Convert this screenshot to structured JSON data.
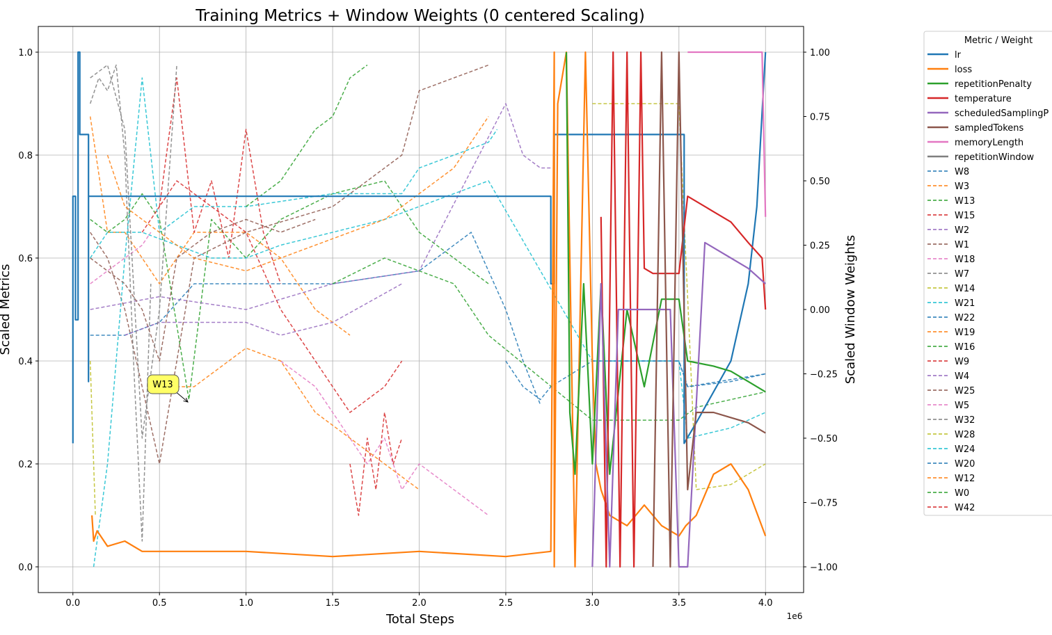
{
  "chart_data": {
    "type": "line",
    "title": "Training Metrics + Window Weights (0 centered Scaling)",
    "xlabel": "Total Steps",
    "ylabel": "Scaled Metrics",
    "y2label": "Scaled Window Weights",
    "x_offset_label": "1e6",
    "xlim": [
      -0.2,
      4.22
    ],
    "ylim": [
      -0.05,
      1.05
    ],
    "y2lim": [
      -1.1,
      1.1
    ],
    "grid": true,
    "x_ticks": [
      0.0,
      0.5,
      1.0,
      1.5,
      2.0,
      2.5,
      3.0,
      3.5,
      4.0
    ],
    "x_tick_labels": [
      "0.0",
      "0.5",
      "1.0",
      "1.5",
      "2.0",
      "2.5",
      "3.0",
      "3.5",
      "4.0"
    ],
    "y_ticks": [
      0.0,
      0.2,
      0.4,
      0.6,
      0.8,
      1.0
    ],
    "y_tick_labels": [
      "0.0",
      "0.2",
      "0.4",
      "0.6",
      "0.8",
      "1.0"
    ],
    "y2_ticks": [
      1.0,
      0.75,
      0.5,
      0.25,
      0.0,
      -0.25,
      -0.5,
      -0.75,
      -1.0
    ],
    "y2_tick_labels": [
      "1.00",
      "0.75",
      "0.50",
      "0.25",
      "0.00",
      "−0.25",
      "−0.50",
      "−0.75",
      "−1.00"
    ],
    "legend_title": "Metric / Weight",
    "legend_position": "outside right",
    "annotation": {
      "text": "W13",
      "x": 0.67,
      "y": 0.32
    },
    "series": [
      {
        "name": "lr",
        "color": "#1f77b4",
        "style": "solid",
        "axis": "left",
        "x": [
          0.0,
          0.0,
          0.015,
          0.015,
          0.03,
          0.03,
          0.04,
          0.04,
          0.09,
          0.09,
          0.09,
          0.1,
          0.5,
          1.0,
          1.5,
          2.0,
          2.5,
          2.76,
          2.76,
          2.78,
          2.78,
          3.0,
          3.5,
          3.53,
          3.53,
          3.6,
          3.8,
          3.9,
          3.95,
          4.0
        ],
        "y": [
          0.24,
          0.72,
          0.72,
          0.48,
          0.48,
          1.0,
          1.0,
          0.84,
          0.84,
          0.36,
          0.72,
          0.72,
          0.72,
          0.72,
          0.72,
          0.72,
          0.72,
          0.72,
          0.55,
          0.55,
          0.84,
          0.84,
          0.84,
          0.84,
          0.24,
          0.28,
          0.4,
          0.55,
          0.7,
          1.0
        ]
      },
      {
        "name": "loss",
        "color": "#ff7f0e",
        "style": "solid",
        "axis": "left",
        "x": [
          0.11,
          0.12,
          0.14,
          0.2,
          0.3,
          0.4,
          0.5,
          0.7,
          1.0,
          1.5,
          2.0,
          2.5,
          2.76,
          2.78,
          2.78,
          2.8,
          2.85,
          2.9,
          2.96,
          3.0,
          3.02,
          3.05,
          3.1,
          3.2,
          3.3,
          3.4,
          3.5,
          3.54,
          3.6,
          3.7,
          3.8,
          3.9,
          4.0
        ],
        "y": [
          0.1,
          0.05,
          0.07,
          0.04,
          0.05,
          0.03,
          0.03,
          0.03,
          0.03,
          0.02,
          0.03,
          0.02,
          0.03,
          1.0,
          0.0,
          0.9,
          1.0,
          0.0,
          1.0,
          0.4,
          0.2,
          0.15,
          0.1,
          0.08,
          0.12,
          0.08,
          0.06,
          0.08,
          0.1,
          0.18,
          0.2,
          0.15,
          0.06
        ]
      },
      {
        "name": "repetitionPenalty",
        "color": "#2ca02c",
        "style": "solid",
        "axis": "left",
        "x": [
          2.85,
          2.87,
          2.9,
          2.95,
          3.0,
          3.05,
          3.1,
          3.2,
          3.3,
          3.4,
          3.45,
          3.5,
          3.55,
          3.7,
          3.8,
          3.9,
          4.0
        ],
        "y": [
          1.0,
          0.3,
          0.18,
          0.55,
          0.2,
          0.55,
          0.18,
          0.5,
          0.35,
          0.52,
          0.52,
          0.52,
          0.4,
          0.39,
          0.38,
          0.36,
          0.34
        ]
      },
      {
        "name": "temperature",
        "color": "#d62728",
        "style": "solid",
        "axis": "left",
        "x": [
          3.05,
          3.08,
          3.12,
          3.16,
          3.2,
          3.24,
          3.28,
          3.3,
          3.35,
          3.4,
          3.5,
          3.55,
          3.7,
          3.8,
          3.9,
          3.98,
          4.0
        ],
        "y": [
          0.68,
          0.0,
          1.0,
          0.0,
          1.0,
          0.0,
          1.0,
          0.58,
          0.57,
          0.57,
          0.57,
          0.72,
          0.69,
          0.67,
          0.63,
          0.6,
          0.5
        ]
      },
      {
        "name": "scheduledSamplingP",
        "color": "#9467bd",
        "style": "solid",
        "axis": "left",
        "x": [
          3.0,
          3.05,
          3.1,
          3.15,
          3.2,
          3.3,
          3.4,
          3.45,
          3.5,
          3.55,
          3.65,
          3.8,
          3.9,
          4.0
        ],
        "y": [
          0.0,
          0.55,
          0.0,
          0.5,
          0.5,
          0.5,
          0.5,
          0.5,
          0.0,
          0.0,
          0.63,
          0.6,
          0.58,
          0.55
        ]
      },
      {
        "name": "sampledTokens",
        "color": "#8c564b",
        "style": "solid",
        "axis": "left",
        "x": [
          3.35,
          3.4,
          3.45,
          3.5,
          3.55,
          3.6,
          3.7,
          3.8,
          3.9,
          4.0
        ],
        "y": [
          0.0,
          1.0,
          0.0,
          1.0,
          0.15,
          0.3,
          0.3,
          0.29,
          0.28,
          0.26
        ]
      },
      {
        "name": "memoryLength",
        "color": "#e377c2",
        "style": "solid",
        "axis": "left",
        "x": [
          3.55,
          3.7,
          3.8,
          3.9,
          3.98,
          4.0
        ],
        "y": [
          1.0,
          1.0,
          1.0,
          1.0,
          1.0,
          0.68
        ]
      },
      {
        "name": "repetitionWindow",
        "color": "#7f7f7f",
        "style": "solid",
        "axis": "left",
        "x": [],
        "y": []
      },
      {
        "name": "W8",
        "color": "#1f77b4",
        "style": "dashed",
        "axis": "right",
        "x": [
          0.1,
          0.3,
          0.5,
          0.7,
          1.0,
          1.5,
          2.0,
          2.3,
          2.5,
          2.6,
          2.7
        ],
        "y": [
          -0.1,
          -0.1,
          -0.05,
          0.1,
          0.1,
          0.1,
          0.15,
          0.3,
          0.0,
          -0.2,
          -0.37
        ]
      },
      {
        "name": "W3",
        "color": "#ff7f0e",
        "style": "dashed",
        "axis": "right",
        "x": [
          0.1,
          0.2,
          0.3,
          0.4,
          0.5,
          0.7,
          0.9,
          1.0,
          1.2,
          1.4,
          1.6
        ],
        "y": [
          0.75,
          0.3,
          0.3,
          0.2,
          0.1,
          0.3,
          0.3,
          0.3,
          0.2,
          0.0,
          -0.1
        ]
      },
      {
        "name": "W13",
        "color": "#2ca02c",
        "style": "dashed",
        "axis": "right",
        "x": [
          0.1,
          0.2,
          0.3,
          0.4,
          0.5,
          0.67,
          0.8,
          1.0,
          1.2,
          1.5,
          1.8,
          2.0,
          2.2,
          2.4
        ],
        "y": [
          0.35,
          0.3,
          0.35,
          0.45,
          0.35,
          -0.35,
          0.35,
          0.2,
          0.35,
          0.45,
          0.5,
          0.3,
          0.2,
          0.1
        ]
      },
      {
        "name": "W15",
        "color": "#d62728",
        "style": "dashed",
        "axis": "right",
        "x": [
          0.5,
          0.6,
          0.7,
          0.8,
          0.9,
          1.0,
          1.1,
          1.2
        ],
        "y": [
          0.4,
          0.9,
          0.3,
          0.5,
          0.2,
          0.7,
          0.3,
          0.1
        ]
      },
      {
        "name": "W2",
        "color": "#9467bd",
        "style": "dashed",
        "axis": "right",
        "x": [
          0.1,
          0.5,
          1.0,
          1.5,
          2.0,
          2.5,
          2.6,
          2.7,
          2.76
        ],
        "y": [
          0.0,
          0.05,
          0.0,
          0.1,
          0.15,
          0.8,
          0.6,
          0.55,
          0.55
        ]
      },
      {
        "name": "W1",
        "color": "#8c564b",
        "style": "dashed",
        "axis": "right",
        "x": [
          0.1,
          0.2,
          0.3,
          0.4,
          0.5,
          0.7,
          1.0,
          1.5,
          1.7,
          1.9,
          2.0,
          2.2,
          2.4
        ],
        "y": [
          0.3,
          0.2,
          0.0,
          -0.3,
          -0.6,
          0.2,
          0.3,
          0.4,
          0.5,
          0.6,
          0.85,
          0.9,
          0.95
        ]
      },
      {
        "name": "W18",
        "color": "#e377c2",
        "style": "dashed",
        "axis": "right",
        "x": [
          1.2,
          1.3,
          1.4,
          1.5,
          1.6,
          1.7,
          1.8,
          1.9,
          2.0,
          2.1,
          2.2,
          2.3,
          2.4
        ],
        "y": [
          -0.2,
          -0.25,
          -0.3,
          -0.4,
          -0.5,
          -0.6,
          -0.5,
          -0.7,
          -0.6,
          -0.65,
          -0.7,
          -0.75,
          -0.8
        ]
      },
      {
        "name": "W7",
        "color": "#7f7f7f",
        "style": "dashed",
        "axis": "right",
        "x": [
          0.1,
          0.15,
          0.2,
          0.25,
          0.3,
          0.35,
          0.4,
          0.45
        ],
        "y": [
          0.8,
          0.9,
          0.85,
          0.95,
          0.6,
          -0.2,
          -0.9,
          0.1
        ]
      },
      {
        "name": "W14",
        "color": "#bcbd22",
        "style": "dashed",
        "axis": "right",
        "x": [
          3.0,
          3.2,
          3.4,
          3.5,
          3.6,
          3.8,
          4.0
        ],
        "y": [
          0.8,
          0.8,
          0.8,
          0.8,
          -0.7,
          -0.68,
          -0.6
        ]
      },
      {
        "name": "W21",
        "color": "#17becf",
        "style": "dashed",
        "axis": "right",
        "x": [
          0.12,
          0.2,
          0.3,
          0.4,
          0.5,
          0.7,
          1.0,
          1.5,
          1.9,
          2.0,
          2.2,
          2.4,
          2.45
        ],
        "y": [
          -1.0,
          -0.6,
          0.2,
          0.9,
          0.3,
          0.4,
          0.4,
          0.45,
          0.45,
          0.55,
          0.6,
          0.65,
          0.7
        ]
      },
      {
        "name": "W22",
        "color": "#1f77b4",
        "style": "dashed",
        "axis": "right",
        "x": [
          3.0,
          3.5,
          3.55,
          3.8,
          4.0
        ],
        "y": [
          -0.2,
          -0.2,
          -0.3,
          -0.28,
          -0.25
        ]
      },
      {
        "name": "W19",
        "color": "#ff7f0e",
        "style": "dashed",
        "axis": "right",
        "x": [
          0.5,
          0.7,
          0.9,
          1.0,
          1.2,
          1.4,
          1.6,
          1.8,
          2.0
        ],
        "y": [
          -0.3,
          -0.3,
          -0.2,
          -0.15,
          -0.2,
          -0.4,
          -0.5,
          -0.6,
          -0.7
        ]
      },
      {
        "name": "W16",
        "color": "#2ca02c",
        "style": "dashed",
        "axis": "right",
        "x": [
          1.5,
          1.8,
          2.0,
          2.2,
          2.3,
          2.4,
          3.0,
          3.5,
          3.6,
          4.0
        ],
        "y": [
          0.1,
          0.2,
          0.15,
          0.1,
          0.0,
          -0.1,
          -0.43,
          -0.43,
          -0.38,
          -0.32
        ]
      },
      {
        "name": "W9",
        "color": "#d62728",
        "style": "dashed",
        "axis": "right",
        "x": [
          0.4,
          0.6,
          0.8,
          1.0,
          1.2,
          1.4,
          1.6,
          1.8,
          1.9
        ],
        "y": [
          0.3,
          0.5,
          0.4,
          0.3,
          0.0,
          -0.2,
          -0.4,
          -0.3,
          -0.2
        ]
      },
      {
        "name": "W4",
        "color": "#9467bd",
        "style": "dashed",
        "axis": "right",
        "x": [
          0.3,
          0.5,
          1.0,
          1.2,
          1.5,
          1.9
        ],
        "y": [
          -0.1,
          -0.05,
          -0.05,
          -0.1,
          -0.05,
          0.1
        ]
      },
      {
        "name": "W25",
        "color": "#8c564b",
        "style": "dashed",
        "axis": "right",
        "x": [
          0.1,
          0.2,
          0.3,
          0.4,
          0.5,
          0.6,
          0.8,
          1.0,
          1.2,
          1.4
        ],
        "y": [
          0.2,
          0.15,
          0.1,
          0.0,
          -0.2,
          0.2,
          0.3,
          0.35,
          0.3,
          0.35
        ]
      },
      {
        "name": "W5",
        "color": "#e377c2",
        "style": "dashed",
        "axis": "right",
        "x": [
          0.1,
          0.2,
          0.3,
          0.4,
          0.45
        ],
        "y": [
          0.1,
          0.15,
          0.2,
          0.25,
          0.3
        ]
      },
      {
        "name": "W32",
        "color": "#7f7f7f",
        "style": "dashed",
        "axis": "right",
        "x": [
          0.1,
          0.2,
          0.3,
          0.4,
          0.5,
          0.6
        ],
        "y": [
          0.9,
          0.95,
          0.7,
          -0.5,
          0.0,
          0.95
        ]
      },
      {
        "name": "W28",
        "color": "#bcbd22",
        "style": "dashed",
        "axis": "right",
        "x": [
          0.1,
          0.11,
          0.12,
          0.13
        ],
        "y": [
          -0.2,
          -0.4,
          -0.6,
          -0.8
        ]
      },
      {
        "name": "W24",
        "color": "#17becf",
        "style": "dashed",
        "axis": "right",
        "x": [
          0.1,
          0.2,
          0.4,
          0.6,
          0.8,
          1.0,
          1.2,
          1.5,
          1.8,
          2.0,
          2.2,
          2.4,
          3.0,
          3.5,
          3.55,
          3.8,
          4.0
        ],
        "y": [
          0.2,
          0.3,
          0.3,
          0.25,
          0.2,
          0.2,
          0.25,
          0.3,
          0.35,
          0.4,
          0.45,
          0.5,
          -0.2,
          -0.2,
          -0.5,
          -0.46,
          -0.4
        ]
      },
      {
        "name": "W20",
        "color": "#1f77b4",
        "style": "dashed",
        "axis": "right",
        "x": [
          2.5,
          2.6,
          2.7,
          2.76,
          3.0,
          3.5,
          3.55,
          4.0
        ],
        "y": [
          -0.2,
          -0.3,
          -0.35,
          -0.3,
          -0.2,
          -0.2,
          -0.3,
          -0.25
        ]
      },
      {
        "name": "W12",
        "color": "#ff7f0e",
        "style": "dashed",
        "axis": "right",
        "x": [
          0.2,
          0.3,
          0.5,
          0.7,
          1.0,
          1.2,
          1.4,
          1.6,
          1.8,
          2.0,
          2.2,
          2.4
        ],
        "y": [
          0.6,
          0.4,
          0.3,
          0.2,
          0.15,
          0.2,
          0.25,
          0.3,
          0.35,
          0.45,
          0.55,
          0.75
        ]
      },
      {
        "name": "W0",
        "color": "#2ca02c",
        "style": "dashed",
        "axis": "right",
        "x": [
          1.0,
          1.1,
          1.2,
          1.3,
          1.4,
          1.5,
          1.6,
          1.7
        ],
        "y": [
          0.4,
          0.45,
          0.5,
          0.6,
          0.7,
          0.75,
          0.9,
          0.95
        ]
      },
      {
        "name": "W42",
        "color": "#d62728",
        "style": "dashed",
        "axis": "right",
        "x": [
          1.6,
          1.65,
          1.7,
          1.75,
          1.8,
          1.85,
          1.9
        ],
        "y": [
          -0.6,
          -0.8,
          -0.5,
          -0.7,
          -0.4,
          -0.6,
          -0.5
        ]
      }
    ]
  }
}
